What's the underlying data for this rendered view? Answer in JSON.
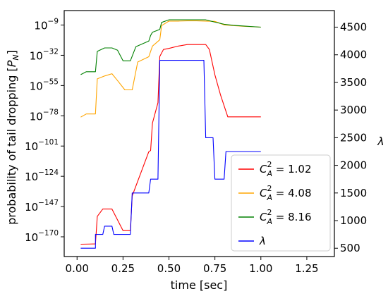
{
  "chart_data": {
    "type": "line",
    "xlabel": "time [sec]",
    "ylabel_left": "probability of tail dropping [P_N]",
    "ylabel_right": "λ",
    "xlim": [
      -0.07,
      1.4
    ],
    "xticks": [
      0.0,
      0.25,
      0.5,
      0.75,
      1.0,
      1.25
    ],
    "xtick_labels": [
      "0.00",
      "0.25",
      "0.50",
      "0.75",
      "1.00",
      "1.25"
    ],
    "y_left": {
      "scale": "log10",
      "lim_exponent": [
        -185,
        2
      ],
      "ticks": [
        {
          "base": "10",
          "exp": "−9",
          "value_exponent": -9
        },
        {
          "base": "10",
          "exp": "−32",
          "value_exponent": -32
        },
        {
          "base": "10",
          "exp": "−55",
          "value_exponent": -55
        },
        {
          "base": "10",
          "exp": "−78",
          "value_exponent": -78
        },
        {
          "base": "10",
          "exp": "−101",
          "value_exponent": -101
        },
        {
          "base": "10",
          "exp": "−124",
          "value_exponent": -124
        },
        {
          "base": "10",
          "exp": "−147",
          "value_exponent": -147
        },
        {
          "base": "10",
          "exp": "−170",
          "value_exponent": -170
        }
      ]
    },
    "y_right": {
      "scale": "linear",
      "lim": [
        350,
        4800
      ],
      "ticks": [
        500,
        1000,
        1500,
        2000,
        2500,
        3000,
        3500,
        4000,
        4500
      ],
      "tick_labels": [
        "500",
        "1000",
        "1500",
        "2000",
        "2500",
        "3000",
        "3500",
        "4000",
        "4500"
      ]
    },
    "series": [
      {
        "name": "C_A^2 = 1.02",
        "legend_base": "C",
        "legend_sup": "2",
        "legend_sub": "A",
        "legend_rest": " = 1.02",
        "color": "#ff0000",
        "axis": "left",
        "x": [
          0.02,
          0.1,
          0.11,
          0.14,
          0.19,
          0.25,
          0.29,
          0.3,
          0.39,
          0.4,
          0.41,
          0.44,
          0.45,
          0.47,
          0.5,
          0.55,
          0.6,
          0.65,
          0.7,
          0.72,
          0.75,
          0.78,
          0.82,
          0.9,
          1.0
        ],
        "y_exponent": [
          -175.6,
          -175.4,
          -154.5,
          -148.9,
          -148.9,
          -165.3,
          -165.3,
          -138.9,
          -105.3,
          -104.4,
          -83.5,
          -68.1,
          -32.9,
          -27.6,
          -26.8,
          -25.0,
          -23.8,
          -23.8,
          -23.8,
          -27.6,
          -46.8,
          -62.0,
          -78.8,
          -78.8,
          -78.8
        ]
      },
      {
        "name": "C_A^2 = 4.08",
        "legend_base": "C",
        "legend_sup": "2",
        "legend_sub": "A",
        "legend_rest": " = 4.08",
        "color": "#ffa500",
        "axis": "left",
        "x": [
          0.02,
          0.05,
          0.1,
          0.11,
          0.15,
          0.19,
          0.22,
          0.26,
          0.3,
          0.33,
          0.39,
          0.4,
          0.41,
          0.45,
          0.46,
          0.5,
          0.55,
          0.6,
          0.65,
          0.7,
          0.75,
          0.8,
          0.85,
          0.9,
          1.0
        ],
        "y_exponent": [
          -79.0,
          -76.6,
          -76.6,
          -49.9,
          -47.7,
          -46.0,
          -51.2,
          -58.3,
          -58.3,
          -37.1,
          -33.1,
          -29.0,
          -25.0,
          -20.2,
          -9.4,
          -6.0,
          -6.0,
          -5.8,
          -5.8,
          -6.0,
          -6.2,
          -8.9,
          -9.4,
          -9.9,
          -10.6
        ]
      },
      {
        "name": "C_A^2 = 8.16",
        "legend_base": "C",
        "legend_sup": "2",
        "legend_sub": "A",
        "legend_rest": " = 8.16",
        "color": "#008000",
        "axis": "left",
        "x": [
          0.02,
          0.05,
          0.1,
          0.11,
          0.15,
          0.19,
          0.22,
          0.25,
          0.29,
          0.32,
          0.39,
          0.4,
          0.41,
          0.45,
          0.46,
          0.5,
          0.55,
          0.6,
          0.65,
          0.7,
          0.75,
          0.8,
          0.85,
          0.9,
          1.0
        ],
        "y_exponent": [
          -46.7,
          -44.5,
          -44.5,
          -29.0,
          -26.4,
          -26.4,
          -28.1,
          -36.2,
          -36.2,
          -25.5,
          -21.2,
          -16.9,
          -14.5,
          -12.3,
          -7.0,
          -5.0,
          -5.0,
          -5.0,
          -5.0,
          -5.0,
          -6.8,
          -8.4,
          -9.2,
          -9.7,
          -10.6
        ]
      },
      {
        "name": "λ",
        "legend_base": "λ",
        "legend_sup": "",
        "legend_sub": "",
        "legend_rest": "",
        "color": "#0000ff",
        "axis": "right",
        "x": [
          0.02,
          0.1,
          0.1,
          0.14,
          0.15,
          0.19,
          0.2,
          0.29,
          0.3,
          0.39,
          0.4,
          0.44,
          0.45,
          0.69,
          0.7,
          0.74,
          0.75,
          0.8,
          0.81,
          1.0
        ],
        "y": [
          500,
          500,
          750,
          750,
          900,
          900,
          750,
          750,
          1500,
          1500,
          1750,
          1750,
          3900,
          3900,
          2500,
          2500,
          1750,
          1750,
          2250,
          2250
        ]
      }
    ],
    "legend": "bottom-right",
    "grid": false
  }
}
